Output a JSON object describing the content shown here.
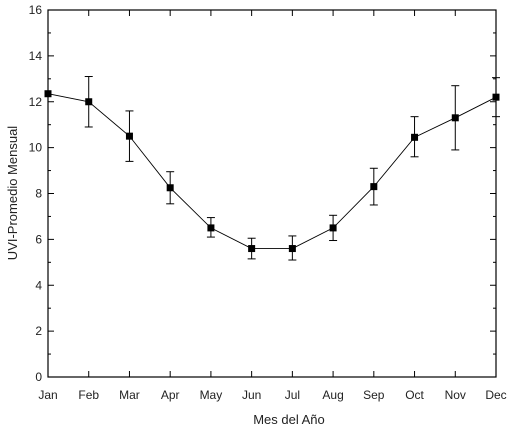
{
  "chart_data": {
    "type": "line",
    "title": "",
    "xlabel": "Mes del Año",
    "ylabel": "UVI-Promedio Mensual",
    "categories": [
      "Jan",
      "Feb",
      "Mar",
      "Apr",
      "May",
      "Jun",
      "Jul",
      "Aug",
      "Sep",
      "Oct",
      "Nov",
      "Dec"
    ],
    "ylim": [
      0,
      16
    ],
    "yticks": [
      0,
      2,
      4,
      6,
      8,
      10,
      12,
      14,
      16
    ],
    "grid": false,
    "legend": "none",
    "series": [
      {
        "values": [
          12.35,
          12.0,
          10.5,
          8.25,
          6.5,
          5.6,
          5.6,
          6.5,
          8.3,
          10.45,
          11.3,
          12.2
        ],
        "error_low": [
          null,
          10.9,
          9.4,
          7.55,
          6.1,
          5.15,
          5.1,
          5.95,
          7.5,
          9.6,
          9.9,
          11.35
        ],
        "error_high": [
          null,
          13.1,
          11.6,
          8.95,
          6.95,
          6.05,
          6.15,
          7.05,
          9.1,
          11.35,
          12.7,
          13.05
        ],
        "color": "#000000",
        "marker": "square"
      }
    ]
  }
}
